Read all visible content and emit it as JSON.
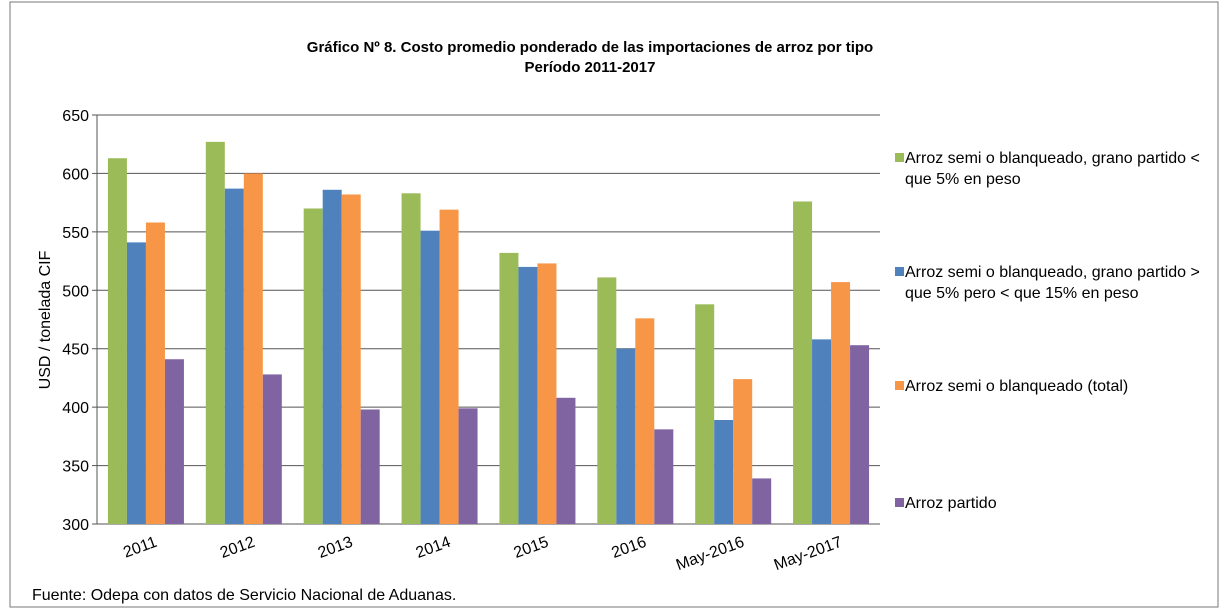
{
  "chart_data": {
    "type": "bar",
    "title": "Gráfico Nº 8. Costo promedio ponderado de las importaciones de arroz por tipo",
    "subtitle": "Período 2011-2017",
    "y_label": "USD / tonelada CIF",
    "source": "Fuente: Odepa con datos de Servicio Nacional de Aduanas.",
    "categories": [
      "2011",
      "2012",
      "2013",
      "2014",
      "2015",
      "2016",
      "May-2016",
      "May-2017"
    ],
    "series": [
      {
        "name": "Arroz semi o blanqueado, grano partido < que 5% en peso",
        "color": "#9bbb59",
        "values": [
          613,
          627,
          570,
          583,
          532,
          511,
          488,
          576
        ]
      },
      {
        "name": "Arroz semi o blanqueado, grano partido > que 5% pero < que 15% en peso",
        "color": "#4f81bd",
        "values": [
          541,
          587,
          586,
          551,
          520,
          450,
          389,
          458
        ]
      },
      {
        "name": "Arroz semi o blanqueado (total)",
        "color": "#f79646",
        "values": [
          558,
          600,
          582,
          569,
          523,
          476,
          424,
          507
        ]
      },
      {
        "name": "Arroz partido",
        "color": "#8064a2",
        "values": [
          441,
          428,
          398,
          399,
          408,
          381,
          339,
          453
        ]
      }
    ],
    "ylim": [
      300,
      650
    ],
    "yticks": [
      300,
      350,
      400,
      450,
      500,
      550,
      600,
      650
    ],
    "grid": true,
    "legend": "right"
  }
}
